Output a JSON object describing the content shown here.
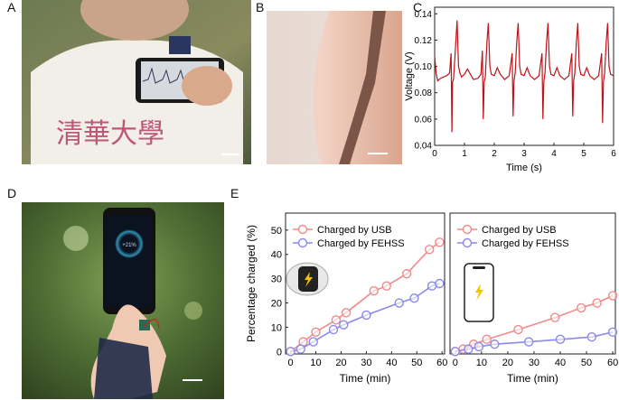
{
  "panels": {
    "A": {
      "letter": "A"
    },
    "B": {
      "letter": "B"
    },
    "C": {
      "letter": "C"
    },
    "D": {
      "letter": "D"
    },
    "E": {
      "letter": "E"
    }
  },
  "photoA": {
    "shirt_text": "清華大學"
  },
  "photoD": {
    "phone_readout": "+21%"
  },
  "colors": {
    "ecg_red": "#c0121a",
    "usb_pink": "#f08a8a",
    "fehss_blue": "#8a8ae8"
  },
  "chart_data": [
    {
      "panel": "C",
      "type": "line",
      "xlabel": "Time (s)",
      "ylabel": "Voltage (V)",
      "xlim": [
        0,
        6
      ],
      "ylim": [
        0.04,
        0.145
      ],
      "xticks": [
        "0",
        "1",
        "2",
        "3",
        "4",
        "5",
        "6"
      ],
      "yticks": [
        "0.04",
        "0.06",
        "0.08",
        "0.10",
        "0.12",
        "0.14"
      ],
      "grid": false,
      "series": [
        {
          "values_x": [
            0,
            0.05,
            0.1,
            0.15,
            0.2,
            0.3,
            0.4,
            0.5,
            0.55,
            0.58,
            0.6,
            0.63,
            0.66,
            0.7,
            0.75,
            0.8,
            0.85,
            0.9,
            1.0,
            1.1,
            1.2,
            1.3,
            1.45,
            1.55,
            1.6,
            1.63,
            1.66,
            1.7,
            1.75,
            1.8,
            1.85,
            1.9,
            2.0,
            2.1,
            2.2,
            2.35,
            2.5,
            2.6,
            2.63,
            2.66,
            2.7,
            2.75,
            2.8,
            2.85,
            2.9,
            3.0,
            3.1,
            3.2,
            3.35,
            3.5,
            3.6,
            3.63,
            3.66,
            3.7,
            3.75,
            3.8,
            3.85,
            3.9,
            4.0,
            4.1,
            4.2,
            4.35,
            4.5,
            4.6,
            4.63,
            4.66,
            4.7,
            4.75,
            4.8,
            4.85,
            4.9,
            5.0,
            5.1,
            5.2,
            5.35,
            5.5,
            5.6,
            5.63,
            5.66,
            5.7,
            5.75,
            5.8,
            5.85,
            5.9,
            6.0
          ],
          "values_y": [
            0.108,
            0.095,
            0.089,
            0.09,
            0.091,
            0.092,
            0.093,
            0.095,
            0.11,
            0.05,
            0.088,
            0.09,
            0.1,
            0.115,
            0.135,
            0.1,
            0.095,
            0.092,
            0.094,
            0.098,
            0.094,
            0.09,
            0.091,
            0.094,
            0.112,
            0.06,
            0.088,
            0.092,
            0.118,
            0.133,
            0.1,
            0.094,
            0.093,
            0.099,
            0.094,
            0.09,
            0.093,
            0.11,
            0.062,
            0.089,
            0.095,
            0.118,
            0.133,
            0.1,
            0.094,
            0.093,
            0.099,
            0.093,
            0.09,
            0.093,
            0.11,
            0.06,
            0.088,
            0.095,
            0.118,
            0.133,
            0.1,
            0.094,
            0.093,
            0.099,
            0.093,
            0.09,
            0.093,
            0.11,
            0.062,
            0.089,
            0.095,
            0.118,
            0.133,
            0.1,
            0.094,
            0.093,
            0.099,
            0.093,
            0.09,
            0.093,
            0.11,
            0.057,
            0.088,
            0.095,
            0.118,
            0.133,
            0.1,
            0.094,
            0.093
          ]
        }
      ]
    },
    {
      "panel": "E-left",
      "type": "line",
      "xlabel": "Time (min)",
      "ylabel": "Percentage charged (%)",
      "xlim": [
        -2,
        61
      ],
      "ylim": [
        -1,
        57
      ],
      "xticks": [
        "0",
        "10",
        "20",
        "30",
        "40",
        "50",
        "60"
      ],
      "yticks": [
        "0",
        "10",
        "20",
        "30",
        "40",
        "50"
      ],
      "legend": "top-left",
      "series": [
        {
          "name": "Charged by USB",
          "x": [
            0,
            5,
            10,
            18,
            22,
            33,
            38,
            46,
            55,
            59
          ],
          "y": [
            0,
            4,
            8,
            13,
            16,
            25,
            27,
            32,
            42,
            45
          ]
        },
        {
          "name": "Charged by FEHSS",
          "x": [
            0,
            4,
            9,
            17,
            21,
            30,
            43,
            49,
            56,
            59
          ],
          "y": [
            0,
            1,
            4,
            9,
            11,
            15,
            20,
            22,
            27,
            28
          ]
        }
      ]
    },
    {
      "panel": "E-right",
      "type": "line",
      "xlabel": "Time (min)",
      "xlim": [
        -2,
        61
      ],
      "ylim": [
        -1,
        57
      ],
      "xticks": [
        "0",
        "10",
        "20",
        "30",
        "40",
        "50",
        "60"
      ],
      "legend": "top-left",
      "series": [
        {
          "name": "Charged by USB",
          "x": [
            0,
            3,
            7,
            12,
            24,
            38,
            48,
            54,
            60
          ],
          "y": [
            0,
            1,
            3,
            5,
            9,
            14,
            18,
            20,
            23
          ]
        },
        {
          "name": "Charged by FEHSS",
          "x": [
            0,
            5,
            9,
            15,
            28,
            40,
            52,
            60
          ],
          "y": [
            0,
            1,
            2,
            3,
            4,
            5,
            6,
            8
          ]
        }
      ]
    }
  ]
}
